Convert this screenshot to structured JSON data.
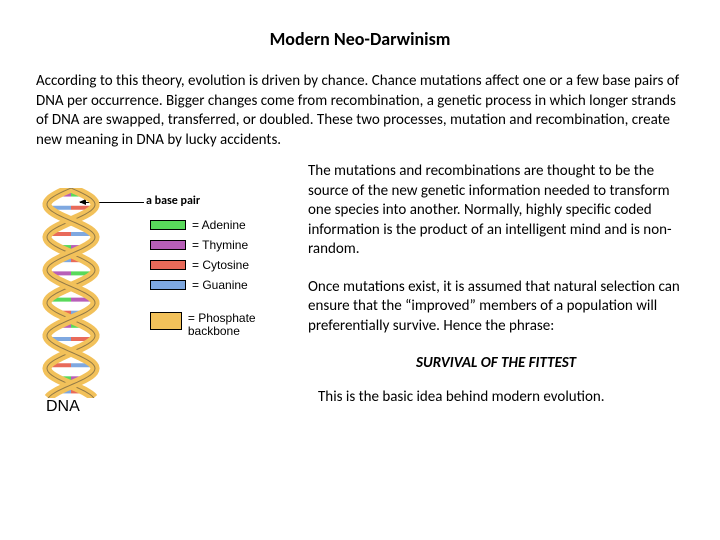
{
  "title": "Modern Neo-Darwinism",
  "intro": "According to this theory, evolution is driven by chance. Chance mutations affect one or a few base pairs of DNA per occurrence. Bigger changes come from recombination, a genetic process in which longer strands of DNA are swapped, transferred, or doubled. These two processes, mutation and recombination, create new meaning in DNA by lucky accidents.",
  "base_pair_label": "a base pair",
  "dna_caption": "DNA",
  "legend": {
    "adenine": {
      "label": "= Adenine",
      "color": "#59d95b"
    },
    "thymine": {
      "label": "= Thymine",
      "color": "#b85fb8"
    },
    "cytosine": {
      "label": "= Cytosine",
      "color": "#e86a5a"
    },
    "guanine": {
      "label": "= Guanine",
      "color": "#7fa8e0"
    },
    "phosphate": {
      "label": "= Phosphate backbone",
      "color": "#f2c15a"
    }
  },
  "right": {
    "p1": "The mutations and recombinations are thought to be the source of the new genetic information needed to transform one species into another. Normally, highly specific coded information is the product of an intelligent mind and is non-random.",
    "p2": "Once mutations exist, it is assumed that natural selection can ensure that the “improved” members of a population will preferentially survive. Hence the phrase:",
    "phrase": "SURVIVAL OF THE FITTEST",
    "closing": "This is the basic idea behind modern evolution."
  },
  "dna_svg": {
    "backbone_color": "#f2c15a",
    "backbone_stroke": "#333333",
    "rung_colors": [
      "#59d95b",
      "#b85fb8",
      "#e86a5a",
      "#7fa8e0"
    ]
  }
}
